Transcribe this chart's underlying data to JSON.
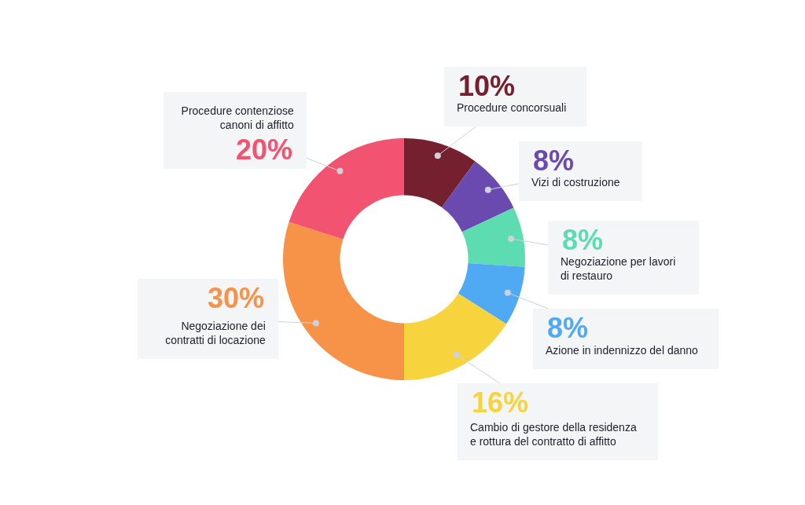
{
  "chart_data": {
    "type": "donut",
    "categories": [
      "Procedure concorsuali",
      "Vizi di costruzione",
      "Negoziazione per lavori\ndi restauro",
      "Azione in indennizzo del danno",
      "Cambio di gestore della residenza\ne rottura del contratto di affitto",
      "Negoziazione dei\ncontratti di locazione",
      "Procedure contenziose\ncanoni di affitto"
    ],
    "values": [
      10,
      8,
      8,
      8,
      16,
      30,
      20
    ],
    "colors": [
      "#75202f",
      "#6a4aae",
      "#5ddcb2",
      "#4faaf3",
      "#f7d43e",
      "#f79349",
      "#f15370"
    ],
    "value_labels": [
      "10%",
      "8%",
      "8%",
      "8%",
      "16%",
      "30%",
      "20%"
    ]
  }
}
